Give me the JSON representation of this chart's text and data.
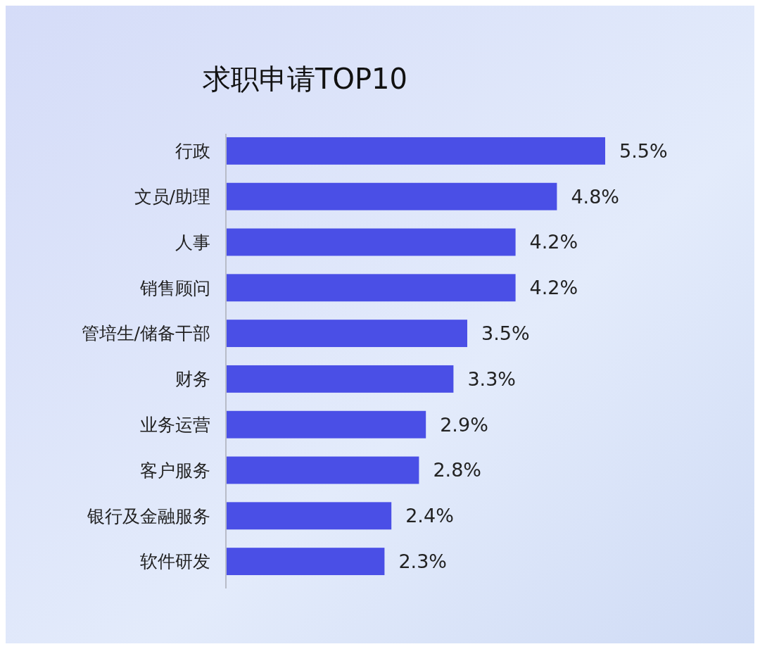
{
  "chart_data": {
    "type": "bar",
    "orientation": "horizontal",
    "title": "求职申请TOP10",
    "categories": [
      "行政",
      "文员/助理",
      "人事",
      "销售顾问",
      "管培生/储备干部",
      "财务",
      "业务运营",
      "客户服务",
      "银行及金融服务",
      "软件研发"
    ],
    "values": [
      5.5,
      4.8,
      4.2,
      4.2,
      3.5,
      3.3,
      2.9,
      2.8,
      2.4,
      2.3
    ],
    "value_labels": [
      "5.5%",
      "4.8%",
      "4.2%",
      "4.2%",
      "3.5%",
      "3.3%",
      "2.9%",
      "2.8%",
      "2.4%",
      "2.3%"
    ],
    "color": "#4a4fe6"
  }
}
